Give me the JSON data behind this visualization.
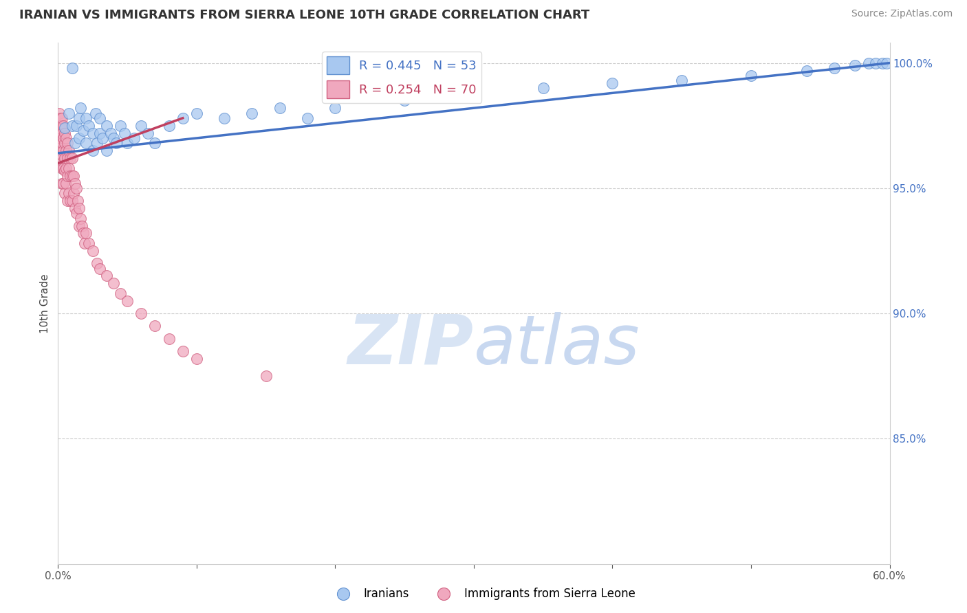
{
  "title": "IRANIAN VS IMMIGRANTS FROM SIERRA LEONE 10TH GRADE CORRELATION CHART",
  "source_text": "Source: ZipAtlas.com",
  "ylabel": "10th Grade",
  "xlim": [
    0.0,
    0.6
  ],
  "ylim": [
    0.8,
    1.008
  ],
  "xticks": [
    0.0,
    0.1,
    0.2,
    0.3,
    0.4,
    0.5,
    0.6
  ],
  "xticklabels": [
    "0.0%",
    "",
    "",
    "",
    "",
    "",
    "60.0%"
  ],
  "yticks_right": [
    1.0,
    0.95,
    0.9,
    0.85
  ],
  "yticklabels_right": [
    "100.0%",
    "95.0%",
    "90.0%",
    "85.0%"
  ],
  "blue_R": 0.445,
  "blue_N": 53,
  "pink_R": 0.254,
  "pink_N": 70,
  "blue_color": "#A8C8F0",
  "pink_color": "#F0A8BE",
  "blue_edge_color": "#6090D0",
  "pink_edge_color": "#D06080",
  "blue_line_color": "#4472C4",
  "pink_line_color": "#C04060",
  "legend_label_blue": "Iranians",
  "legend_label_pink": "Immigrants from Sierra Leone",
  "watermark_color": "#D8E4F4",
  "blue_scatter_x": [
    0.005,
    0.008,
    0.01,
    0.01,
    0.012,
    0.013,
    0.015,
    0.015,
    0.016,
    0.018,
    0.02,
    0.02,
    0.022,
    0.025,
    0.025,
    0.027,
    0.028,
    0.03,
    0.03,
    0.032,
    0.035,
    0.035,
    0.038,
    0.04,
    0.042,
    0.045,
    0.048,
    0.05,
    0.055,
    0.06,
    0.065,
    0.07,
    0.08,
    0.09,
    0.1,
    0.12,
    0.14,
    0.16,
    0.18,
    0.2,
    0.25,
    0.3,
    0.35,
    0.4,
    0.45,
    0.5,
    0.54,
    0.56,
    0.575,
    0.585,
    0.59,
    0.595,
    0.598
  ],
  "blue_scatter_y": [
    0.974,
    0.98,
    0.975,
    0.998,
    0.968,
    0.975,
    0.978,
    0.97,
    0.982,
    0.973,
    0.968,
    0.978,
    0.975,
    0.972,
    0.965,
    0.98,
    0.968,
    0.972,
    0.978,
    0.97,
    0.975,
    0.965,
    0.972,
    0.97,
    0.968,
    0.975,
    0.972,
    0.968,
    0.97,
    0.975,
    0.972,
    0.968,
    0.975,
    0.978,
    0.98,
    0.978,
    0.98,
    0.982,
    0.978,
    0.982,
    0.985,
    0.988,
    0.99,
    0.992,
    0.993,
    0.995,
    0.997,
    0.998,
    0.999,
    1.0,
    1.0,
    1.0,
    1.0
  ],
  "pink_scatter_x": [
    0.001,
    0.001,
    0.001,
    0.001,
    0.002,
    0.002,
    0.002,
    0.002,
    0.002,
    0.003,
    0.003,
    0.003,
    0.003,
    0.003,
    0.003,
    0.004,
    0.004,
    0.004,
    0.004,
    0.004,
    0.005,
    0.005,
    0.005,
    0.005,
    0.005,
    0.006,
    0.006,
    0.006,
    0.006,
    0.007,
    0.007,
    0.007,
    0.007,
    0.008,
    0.008,
    0.008,
    0.009,
    0.009,
    0.009,
    0.01,
    0.01,
    0.01,
    0.011,
    0.011,
    0.012,
    0.012,
    0.013,
    0.013,
    0.014,
    0.015,
    0.015,
    0.016,
    0.017,
    0.018,
    0.019,
    0.02,
    0.022,
    0.025,
    0.028,
    0.03,
    0.035,
    0.04,
    0.045,
    0.05,
    0.06,
    0.07,
    0.08,
    0.09,
    0.1,
    0.15
  ],
  "pink_scatter_y": [
    0.98,
    0.975,
    0.972,
    0.968,
    0.978,
    0.975,
    0.97,
    0.965,
    0.96,
    0.978,
    0.972,
    0.968,
    0.963,
    0.958,
    0.952,
    0.975,
    0.97,
    0.965,
    0.958,
    0.952,
    0.972,
    0.968,
    0.962,
    0.957,
    0.948,
    0.97,
    0.965,
    0.958,
    0.952,
    0.968,
    0.962,
    0.955,
    0.945,
    0.965,
    0.958,
    0.948,
    0.962,
    0.955,
    0.945,
    0.962,
    0.955,
    0.945,
    0.955,
    0.948,
    0.952,
    0.942,
    0.95,
    0.94,
    0.945,
    0.942,
    0.935,
    0.938,
    0.935,
    0.932,
    0.928,
    0.932,
    0.928,
    0.925,
    0.92,
    0.918,
    0.915,
    0.912,
    0.908,
    0.905,
    0.9,
    0.895,
    0.89,
    0.885,
    0.882,
    0.875
  ]
}
